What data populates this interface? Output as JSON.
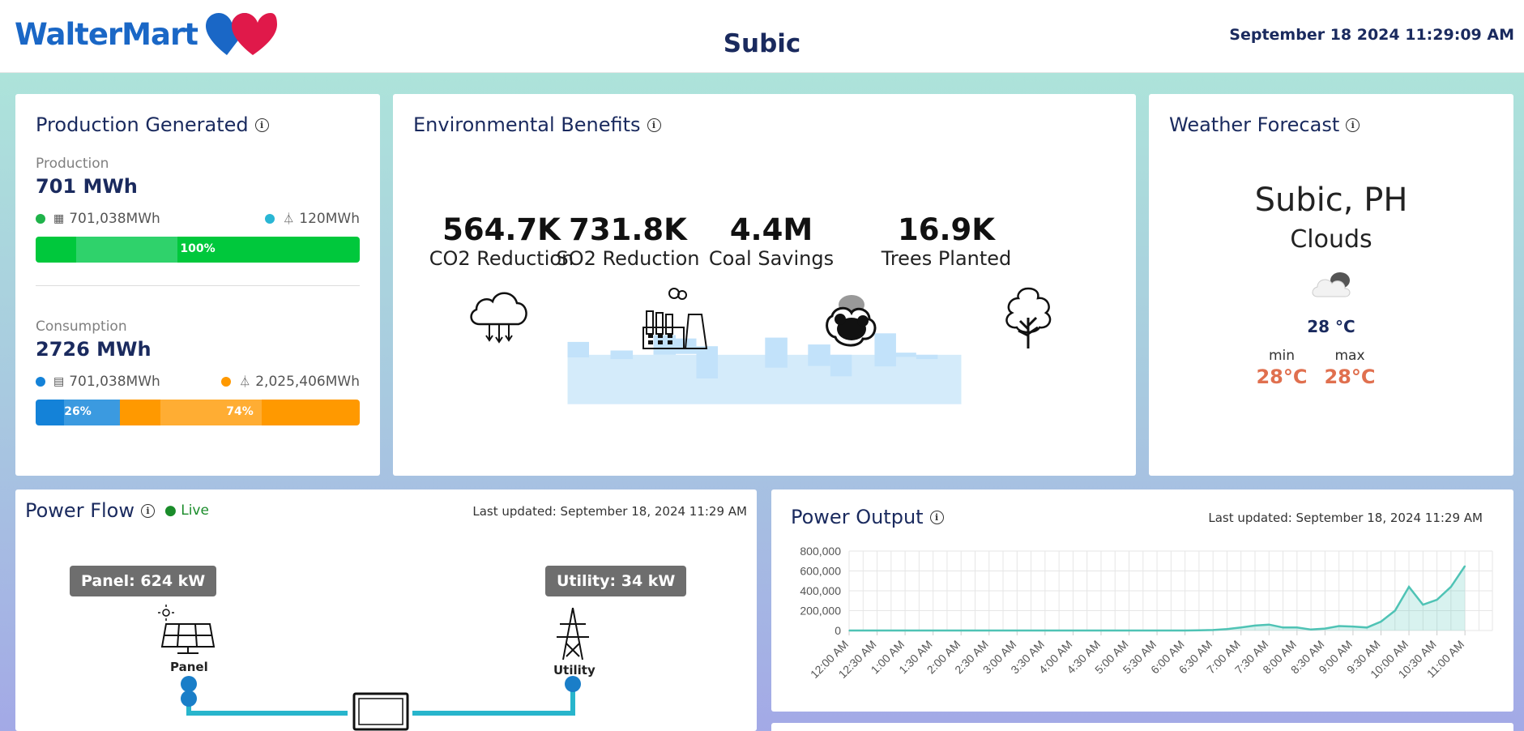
{
  "header": {
    "logo_text": "WalterMart",
    "site_title": "Subic",
    "datetime": "September 18 2024 11:29:09 AM",
    "colors": {
      "brand_blue": "#1a67c6",
      "brand_red": "#e0194a"
    }
  },
  "production": {
    "title": "Production Generated",
    "production_label": "Production",
    "production_value": "701 MWh",
    "prod_solar": "701,038MWh",
    "prod_grid": "120MWh",
    "prod_bar_label": "100%",
    "prod_share": 1.0,
    "consumption_label": "Consumption",
    "consumption_value": "2726 MWh",
    "cons_solar": "701,038MWh",
    "cons_grid": "2,025,406MWh",
    "cons_solar_label": "26%",
    "cons_grid_label": "74%",
    "cons_solar_share": 0.26,
    "colors": {
      "prod": "#22c55e",
      "grid": "#29b6d4",
      "cons_solar": "#1482d8",
      "cons_grid": "#ff9900"
    }
  },
  "environment": {
    "title": "Environmental Benefits",
    "stats": [
      {
        "value": "564.7K",
        "label": "CO2 Reduction",
        "icon": "cloud-rain-icon"
      },
      {
        "value": "731.8K",
        "label": "SO2 Reduction",
        "icon": "factory-icon"
      },
      {
        "value": "4.4M",
        "label": "Coal Savings",
        "icon": "coal-icon"
      },
      {
        "value": "16.9K",
        "label": "Trees Planted",
        "icon": "tree-icon"
      }
    ]
  },
  "weather": {
    "title": "Weather Forecast",
    "city": "Subic, PH",
    "condition": "Clouds",
    "temp": "28 °C",
    "min_label": "min",
    "max_label": "max",
    "min_value": "28°C",
    "max_value": "28°C",
    "icon": "cloud-icon"
  },
  "power_flow": {
    "title": "Power Flow",
    "live": "● Live",
    "last_updated": "Last updated: September 18, 2024 11:29 AM",
    "panel_tag": "Panel: 624 kW",
    "utility_tag": "Utility: 34 kW",
    "panel_label": "Panel",
    "utility_label": "Utility"
  },
  "power_output": {
    "title": "Power Output",
    "last_updated": "Last updated: September 18, 2024 11:29 AM"
  },
  "chart_data": {
    "type": "area",
    "title": "",
    "xlabel": "",
    "ylabel": "",
    "ylim": [
      0,
      800000
    ],
    "yticks": [
      "0",
      "200,000",
      "400,000",
      "600,000",
      "800,000"
    ],
    "grid": true,
    "x": [
      "12:00 AM",
      "12:30 AM",
      "1:00 AM",
      "1:30 AM",
      "2:00 AM",
      "2:30 AM",
      "3:00 AM",
      "3:30 AM",
      "4:00 AM",
      "4:30 AM",
      "5:00 AM",
      "5:30 AM",
      "6:00 AM",
      "6:30 AM",
      "7:00 AM",
      "7:30 AM",
      "8:00 AM",
      "8:30 AM",
      "9:00 AM",
      "9:30 AM",
      "10:00 AM",
      "10:30 AM",
      "11:00 AM"
    ],
    "series": [
      {
        "color": "#4fc3b5",
        "points": [
          [
            "12:00 AM",
            0
          ],
          [
            "12:30 AM",
            0
          ],
          [
            "1:00 AM",
            0
          ],
          [
            "1:30 AM",
            0
          ],
          [
            "2:00 AM",
            0
          ],
          [
            "2:30 AM",
            0
          ],
          [
            "3:00 AM",
            0
          ],
          [
            "3:30 AM",
            0
          ],
          [
            "4:00 AM",
            0
          ],
          [
            "4:30 AM",
            0
          ],
          [
            "5:00 AM",
            0
          ],
          [
            "5:30 AM",
            0
          ],
          [
            "6:00 AM",
            0
          ],
          [
            "6:15 AM",
            2000
          ],
          [
            "6:30 AM",
            5000
          ],
          [
            "6:45 AM",
            15000
          ],
          [
            "7:00 AM",
            30000
          ],
          [
            "7:15 AM",
            50000
          ],
          [
            "7:30 AM",
            60000
          ],
          [
            "7:45 AM",
            30000
          ],
          [
            "8:00 AM",
            30000
          ],
          [
            "8:15 AM",
            10000
          ],
          [
            "8:30 AM",
            20000
          ],
          [
            "8:45 AM",
            45000
          ],
          [
            "9:00 AM",
            40000
          ],
          [
            "9:15 AM",
            30000
          ],
          [
            "9:30 AM",
            90000
          ],
          [
            "9:45 AM",
            200000
          ],
          [
            "10:00 AM",
            440000
          ],
          [
            "10:15 AM",
            260000
          ],
          [
            "10:30 AM",
            310000
          ],
          [
            "10:45 AM",
            440000
          ],
          [
            "11:00 AM",
            650000
          ]
        ]
      }
    ]
  }
}
